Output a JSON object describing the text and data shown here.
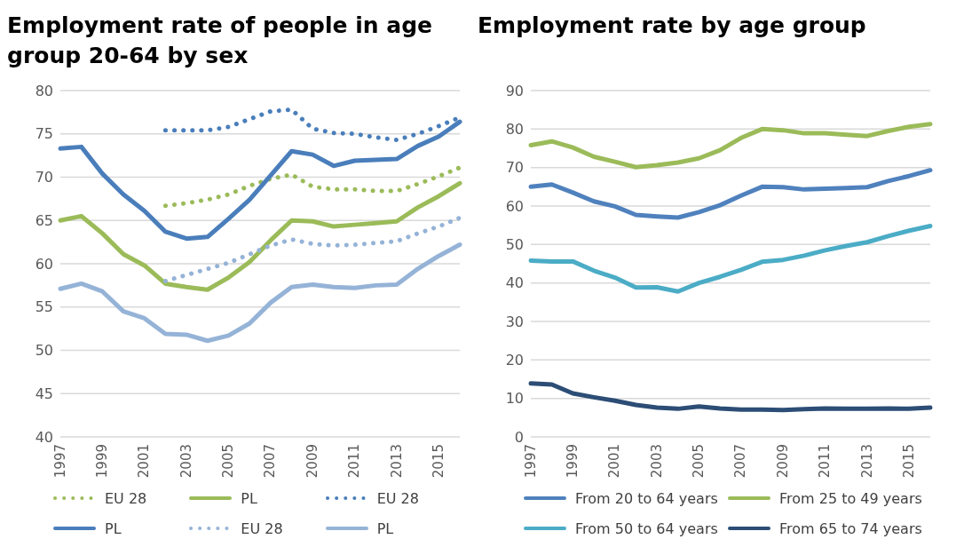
{
  "chart_data": [
    {
      "type": "line",
      "title": "Employment rate of people in age group 20-64 by sex",
      "categories": [
        "1997",
        null,
        "1999",
        null,
        "2001",
        null,
        "2003",
        null,
        "2005",
        null,
        "2007",
        null,
        "2009",
        null,
        "2011",
        null,
        "2013",
        null,
        "2015",
        null
      ],
      "ylim": [
        40,
        80
      ],
      "yticks": [
        40,
        45,
        50,
        55,
        60,
        65,
        70,
        75,
        80
      ],
      "grid": "y",
      "legend": "bottom",
      "series": [
        {
          "name": "EU 28",
          "color": "#9bbb59",
          "line_style": "dotted",
          "values": [
            null,
            null,
            null,
            null,
            null,
            66.7,
            67,
            67.4,
            68,
            69,
            69.8,
            70.3,
            68.9,
            68.6,
            68.6,
            68.4,
            68.4,
            69.2,
            70.1,
            71.1
          ]
        },
        {
          "name": "PL",
          "color": "#9bbb59",
          "line_style": "solid",
          "values": [
            65,
            65.5,
            63.5,
            61.1,
            59.8,
            57.7,
            57.3,
            57,
            58.4,
            60.2,
            62.7,
            65,
            64.9,
            64.3,
            64.5,
            64.7,
            64.9,
            66.5,
            67.8,
            69.3
          ]
        },
        {
          "name": "EU 28",
          "color": "#4a7ebb",
          "line_style": "dotted",
          "values": [
            null,
            null,
            null,
            null,
            null,
            75.4,
            75.4,
            75.4,
            75.8,
            76.7,
            77.6,
            77.8,
            75.6,
            75.1,
            75,
            74.6,
            74.3,
            75,
            75.9,
            76.9
          ]
        },
        {
          "name": "PL",
          "color": "#4a7ebb",
          "line_style": "solid",
          "values": [
            73.3,
            73.5,
            70.4,
            68,
            66.1,
            63.7,
            62.9,
            63.1,
            65.2,
            67.4,
            70.2,
            73,
            72.6,
            71.3,
            71.9,
            72,
            72.1,
            73.6,
            74.7,
            76.4
          ]
        },
        {
          "name": "EU 28",
          "color": "#95b3d7",
          "line_style": "dotted",
          "values": [
            null,
            null,
            null,
            null,
            null,
            58,
            58.7,
            59.4,
            60.1,
            61.1,
            62.1,
            62.8,
            62.3,
            62.1,
            62.2,
            62.4,
            62.6,
            63.5,
            64.3,
            65.3
          ]
        },
        {
          "name": "PL",
          "color": "#95b3d7",
          "line_style": "solid",
          "values": [
            57.1,
            57.7,
            56.8,
            54.5,
            53.7,
            51.9,
            51.8,
            51.1,
            51.7,
            53.1,
            55.5,
            57.3,
            57.6,
            57.3,
            57.2,
            57.5,
            57.6,
            59.4,
            60.9,
            62.2
          ]
        }
      ]
    },
    {
      "type": "line",
      "title": "Employment rate by age group",
      "categories": [
        "1997",
        null,
        "1999",
        null,
        "2001",
        null,
        "2003",
        null,
        "2005",
        null,
        "2007",
        null,
        "2009",
        null,
        "2011",
        null,
        "2013",
        null,
        "2015",
        null
      ],
      "ylim": [
        0,
        90
      ],
      "yticks": [
        0,
        10,
        20,
        30,
        40,
        50,
        60,
        70,
        80,
        90
      ],
      "grid": "y",
      "legend": "bottom",
      "series": [
        {
          "name": "From 20 to 64 years",
          "color": "#4f81bd",
          "values": [
            65,
            65.6,
            63.5,
            61.2,
            59.9,
            57.7,
            57.3,
            57,
            58.4,
            60.2,
            62.7,
            65,
            64.9,
            64.3,
            64.5,
            64.7,
            64.9,
            66.5,
            67.8,
            69.3
          ]
        },
        {
          "name": "From 25 to 49 years",
          "color": "#9bbb59",
          "values": [
            75.8,
            76.8,
            75.2,
            72.8,
            71.5,
            70.1,
            70.6,
            71.3,
            72.4,
            74.5,
            77.7,
            80,
            79.7,
            78.9,
            78.9,
            78.5,
            78.2,
            79.5,
            80.6,
            81.3
          ]
        },
        {
          "name": "From 50 to 64 years",
          "color": "#4bacc6",
          "values": [
            45.8,
            45.6,
            45.6,
            43.2,
            41.4,
            38.8,
            38.9,
            37.8,
            40,
            41.6,
            43.4,
            45.5,
            46,
            47.1,
            48.5,
            49.6,
            50.6,
            52.2,
            53.6,
            54.8
          ]
        },
        {
          "name": "From 65 to 74 years",
          "color": "#2c4d75",
          "values": [
            13.9,
            13.6,
            11.3,
            10.3,
            9.4,
            8.3,
            7.6,
            7.3,
            7.9,
            7.4,
            7.1,
            7.1,
            7,
            7.2,
            7.4,
            7.3,
            7.3,
            7.4,
            7.3,
            7.6
          ]
        }
      ]
    }
  ]
}
